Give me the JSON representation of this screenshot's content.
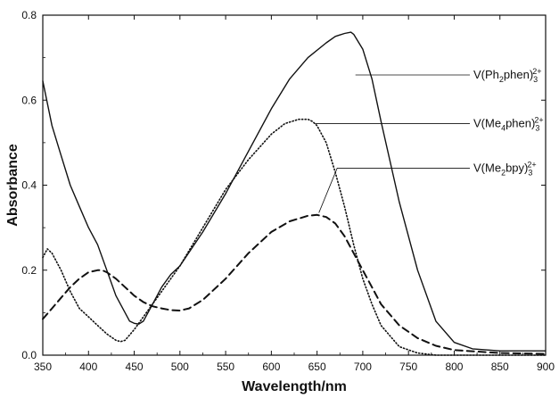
{
  "chart_data": {
    "type": "line",
    "title": "",
    "xlabel": "Wavelength/nm",
    "ylabel": "Absorbance",
    "xlim": [
      350,
      900
    ],
    "ylim": [
      0,
      0.8
    ],
    "grid": false,
    "xticks": [
      "350",
      "400",
      "450",
      "500",
      "550",
      "600",
      "650",
      "700",
      "750",
      "800",
      "850",
      "900"
    ],
    "yticks": [
      "0.0",
      "0.2",
      "0.4",
      "0.6",
      "0.8"
    ],
    "series": [
      {
        "name": "V(Ph2phen)3 2+",
        "label_main": "V(Ph",
        "label_sub1": "2",
        "label_mid": "phen)",
        "label_sub2": "3",
        "label_sup": "2+",
        "style": "solid",
        "color": "#111111",
        "x": [
          350,
          360,
          370,
          380,
          390,
          400,
          410,
          420,
          430,
          440,
          445,
          450,
          455,
          460,
          470,
          480,
          490,
          500,
          525,
          550,
          575,
          600,
          620,
          640,
          660,
          670,
          680,
          687,
          690,
          700,
          710,
          720,
          740,
          760,
          780,
          800,
          820,
          850,
          900
        ],
        "y": [
          0.645,
          0.54,
          0.47,
          0.4,
          0.35,
          0.3,
          0.26,
          0.2,
          0.14,
          0.1,
          0.08,
          0.075,
          0.073,
          0.08,
          0.12,
          0.16,
          0.19,
          0.21,
          0.29,
          0.38,
          0.48,
          0.58,
          0.65,
          0.7,
          0.735,
          0.75,
          0.757,
          0.76,
          0.755,
          0.72,
          0.65,
          0.55,
          0.36,
          0.2,
          0.08,
          0.03,
          0.015,
          0.01,
          0.01
        ]
      },
      {
        "name": "V(Me4phen)3 2+",
        "label_main": "V(Me",
        "label_sub1": "4",
        "label_mid": "phen)",
        "label_sub2": "3",
        "label_sup": "2+",
        "style": "dotted",
        "color": "#111111",
        "x": [
          350,
          355,
          360,
          370,
          380,
          390,
          400,
          410,
          420,
          430,
          435,
          440,
          450,
          460,
          480,
          500,
          525,
          550,
          575,
          600,
          615,
          630,
          640,
          645,
          650,
          660,
          670,
          680,
          690,
          700,
          710,
          720,
          740,
          760,
          780,
          800,
          850,
          900
        ],
        "y": [
          0.23,
          0.25,
          0.24,
          0.2,
          0.15,
          0.11,
          0.09,
          0.07,
          0.05,
          0.035,
          0.032,
          0.035,
          0.06,
          0.09,
          0.15,
          0.21,
          0.3,
          0.39,
          0.46,
          0.52,
          0.545,
          0.555,
          0.555,
          0.55,
          0.54,
          0.5,
          0.43,
          0.35,
          0.26,
          0.18,
          0.12,
          0.07,
          0.02,
          0.005,
          0.0,
          0.0,
          0.0,
          0.0
        ]
      },
      {
        "name": "V(Me2bpy)3 2+",
        "label_main": "V(Me",
        "label_sub1": "2",
        "label_mid": "bpy)",
        "label_sub2": "3",
        "label_sup": "2+",
        "style": "dashed",
        "color": "#111111",
        "x": [
          350,
          360,
          370,
          380,
          390,
          400,
          410,
          415,
          420,
          430,
          440,
          450,
          460,
          470,
          480,
          490,
          500,
          510,
          525,
          550,
          575,
          600,
          620,
          640,
          650,
          660,
          670,
          680,
          690,
          700,
          710,
          720,
          740,
          760,
          780,
          800,
          850,
          900
        ],
        "y": [
          0.085,
          0.11,
          0.135,
          0.16,
          0.18,
          0.195,
          0.2,
          0.2,
          0.195,
          0.18,
          0.16,
          0.14,
          0.125,
          0.115,
          0.11,
          0.106,
          0.105,
          0.11,
          0.13,
          0.18,
          0.24,
          0.29,
          0.315,
          0.328,
          0.33,
          0.325,
          0.31,
          0.28,
          0.24,
          0.2,
          0.16,
          0.12,
          0.07,
          0.04,
          0.022,
          0.012,
          0.005,
          0.003
        ]
      }
    ]
  }
}
